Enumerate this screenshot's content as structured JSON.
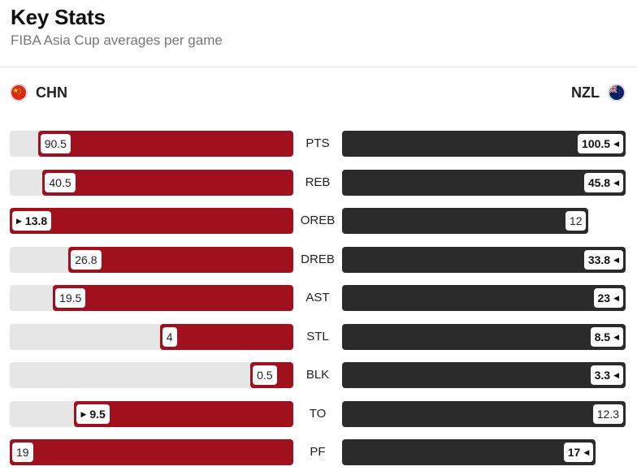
{
  "header": {
    "title": "Key Stats",
    "subtitle": "FIBA Asia Cup averages per game"
  },
  "teams": {
    "left": {
      "code": "CHN",
      "flag_icon": "china-flag-icon",
      "color": "#a0101d"
    },
    "right": {
      "code": "NZL",
      "flag_icon": "new-zealand-flag-icon",
      "color": "#2b2b2b"
    }
  },
  "chart_data": {
    "type": "bar",
    "orientation": "horizontal-mirrored",
    "categories": [
      "PTS",
      "REB",
      "OREB",
      "DREB",
      "AST",
      "STL",
      "BLK",
      "TO",
      "PF"
    ],
    "series": [
      {
        "name": "CHN",
        "values": [
          90.5,
          40.5,
          13.8,
          26.8,
          19.5,
          4,
          0.5,
          9.5,
          19
        ]
      },
      {
        "name": "NZL",
        "values": [
          100.5,
          45.8,
          12,
          33.8,
          23,
          8.5,
          3.3,
          12.3,
          17
        ]
      }
    ],
    "leader": [
      "NZL",
      "NZL",
      "CHN",
      "NZL",
      "NZL",
      "NZL",
      "NZL",
      "CHN",
      "NZL"
    ]
  }
}
